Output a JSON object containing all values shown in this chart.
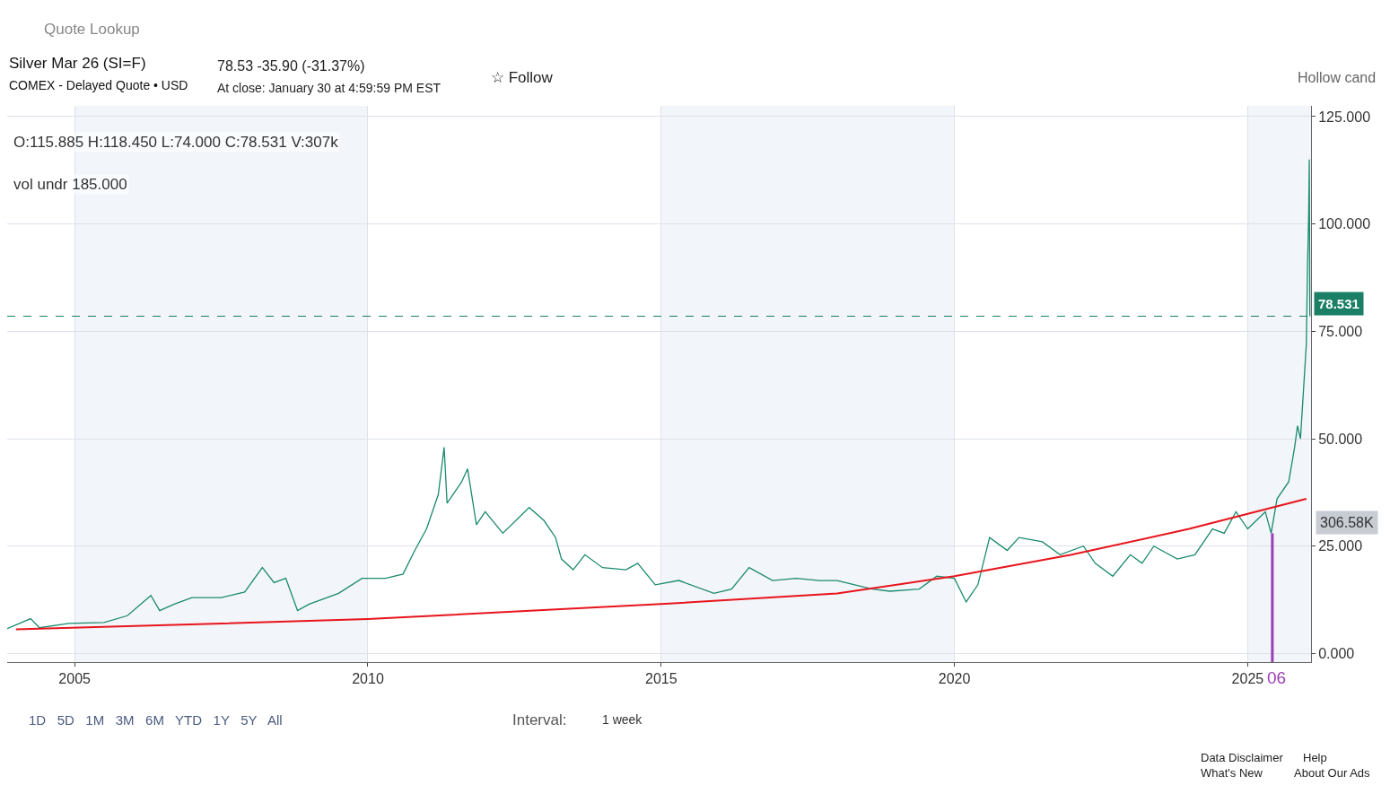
{
  "chart_data": {
    "type": "line",
    "title": "Silver Mar 26 (SI=F)",
    "subtitle": "COMEX - Delayed Quote • USD",
    "annotations": [
      "78.53 -35.90 (-31.37%)",
      "At close: January 30 at 4:59:59 PM EST",
      "O:115.885 H:118.450 L:74.000 C:78.531 V:307k",
      "vol undr 185.000",
      "306.58K",
      "Quote Lookup",
      "☆ Follow",
      "Hollow cand",
      "1D   5D   1M   3M   6M   YTD   1Y   5Y   All",
      "Interval:",
      "1 week",
      "Data Disclaimer",
      "Help",
      "What's New",
      "About Our Ads",
      "06"
    ],
    "series": [
      {
        "color": "#1a8a6e",
        "x": [
          2003.85,
          2004.25,
          2004.4,
          2004.9,
          2005.5,
          2005.9,
          2006.3,
          2006.45,
          2006.7,
          2007.0,
          2007.5,
          2007.9,
          2008.2,
          2008.4,
          2008.6,
          2008.8,
          2009.0,
          2009.5,
          2009.9,
          2010.3,
          2010.6,
          2010.8,
          2011.0,
          2011.2,
          2011.3,
          2011.35,
          2011.6,
          2011.7,
          2011.85,
          2012.0,
          2012.3,
          2012.6,
          2012.75,
          2013.0,
          2013.2,
          2013.3,
          2013.5,
          2013.7,
          2014.0,
          2014.4,
          2014.6,
          2014.9,
          2015.3,
          2015.9,
          2016.2,
          2016.5,
          2016.9,
          2017.3,
          2017.7,
          2018.0,
          2018.6,
          2018.9,
          2019.4,
          2019.7,
          2020.0,
          2020.2,
          2020.4,
          2020.6,
          2020.9,
          2021.1,
          2021.5,
          2021.8,
          2022.2,
          2022.4,
          2022.7,
          2023.0,
          2023.2,
          2023.4,
          2023.8,
          2024.1,
          2024.4,
          2024.6,
          2024.8,
          2025.0,
          2025.3,
          2025.4,
          2025.5,
          2025.7,
          2025.8,
          2025.85,
          2025.9,
          2026.0,
          2026.02,
          2026.04,
          2026.05,
          2026.06
        ],
        "values": [
          5.8,
          8.1,
          6.0,
          7.0,
          7.2,
          8.8,
          13.5,
          10.0,
          11.5,
          13.0,
          13.0,
          14.3,
          20.0,
          16.5,
          17.5,
          10.0,
          11.5,
          14,
          17.5,
          17.5,
          18.5,
          24,
          29,
          37,
          48,
          35,
          40,
          43,
          30,
          33,
          28,
          32,
          34,
          31,
          27,
          22,
          19.5,
          23,
          20,
          19.5,
          21,
          16,
          17,
          14,
          15,
          20,
          17,
          17.5,
          17,
          17,
          15,
          14.5,
          15,
          18,
          17.5,
          12,
          16,
          27,
          24,
          27,
          26,
          23,
          25,
          21,
          18,
          23,
          21,
          25,
          22,
          23,
          29,
          28,
          33,
          29,
          33,
          28,
          36,
          40,
          48,
          53,
          50,
          72,
          90,
          102,
          115,
          78.5
        ]
      },
      {
        "color": "#e8141c",
        "x": [
          2004.0,
          2010.0,
          2015.0,
          2018.0,
          2020.0,
          2022.0,
          2024.0,
          2026.0
        ],
        "values": [
          5.6,
          8.0,
          11.5,
          14,
          18,
          23,
          29,
          36
        ]
      }
    ],
    "xlim": [
      2003.85,
      2026.08
    ],
    "xticks": [
      2005,
      2010,
      2015,
      2020,
      2025
    ],
    "ylim": [
      -2,
      127.5
    ],
    "yticks": [
      {
        "value": 0,
        "label": "0.000"
      },
      {
        "value": 25,
        "label": "25.000"
      },
      {
        "value": 50,
        "label": "50.000"
      },
      {
        "value": 75,
        "label": "75.000"
      },
      {
        "value": 100,
        "label": "100.000"
      },
      {
        "value": 125,
        "label": "125.000"
      }
    ],
    "ref_lines": [
      {
        "axis": "y",
        "value": 78.531,
        "label": "78.531",
        "color": "#1a7f64",
        "line_style": "dashed"
      },
      {
        "axis": "x",
        "value": 2025.42,
        "color": "#9b3fb5",
        "line_style": "solid"
      }
    ],
    "bands": [
      {
        "axis": "x",
        "from": 2005,
        "to": 2010,
        "color": "#f2f5f9"
      },
      {
        "axis": "x",
        "from": 2015,
        "to": 2020,
        "color": "#f2f5f9"
      },
      {
        "axis": "x",
        "from": 2025,
        "to": 2026.08,
        "color": "#f2f5f9"
      }
    ],
    "grid": true,
    "marker": "none",
    "line_style": "solid"
  }
}
